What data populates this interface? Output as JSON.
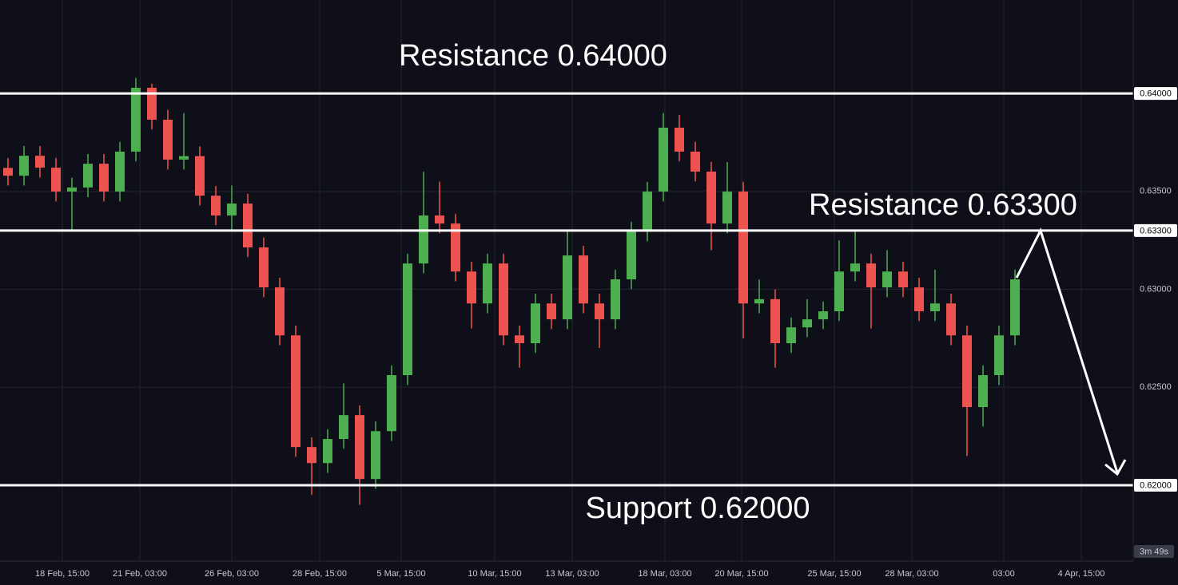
{
  "chart_data": {
    "type": "candlestick",
    "colors": {
      "up": "#4caf50",
      "down": "#ef5350"
    },
    "open": [
      0.6362,
      0.6358,
      0.63682,
      0.63621,
      0.63499,
      0.6352,
      0.63641,
      0.63499,
      0.63703,
      0.64029,
      0.63866,
      0.63662,
      0.6368,
      0.63478,
      0.63377,
      0.63438,
      0.63214,
      0.6301,
      0.62765,
      0.62195,
      0.62113,
      0.62236,
      0.62358,
      0.62032,
      0.62276,
      0.62562,
      0.63132,
      0.63377,
      0.63336,
      0.63091,
      0.62928,
      0.63132,
      0.62765,
      0.62725,
      0.62928,
      0.62847,
      0.63173,
      0.62928,
      0.62847,
      0.63051,
      0.63295,
      0.63499,
      0.63825,
      0.63703,
      0.63601,
      0.63336,
      0.63499,
      0.62928,
      0.6295,
      0.62725,
      0.62806,
      0.62847,
      0.62888,
      0.63091,
      0.63132,
      0.6301,
      0.63091,
      0.6301,
      0.62888,
      0.62928,
      0.62765,
      0.62399,
      0.62562,
      0.62765
    ],
    "high": [
      0.6367,
      0.63732,
      0.63732,
      0.63671,
      0.6357,
      0.63691,
      0.63691,
      0.63753,
      0.64079,
      0.6405,
      0.63916,
      0.639,
      0.6373,
      0.63528,
      0.6353,
      0.63488,
      0.63264,
      0.6306,
      0.62815,
      0.62245,
      0.62286,
      0.6252,
      0.62408,
      0.62326,
      0.62612,
      0.63182,
      0.636,
      0.6355,
      0.63386,
      0.63141,
      0.63182,
      0.63182,
      0.62815,
      0.62978,
      0.62978,
      0.633,
      0.63223,
      0.62978,
      0.63101,
      0.63345,
      0.63549,
      0.639,
      0.6389,
      0.63753,
      0.63651,
      0.6365,
      0.63549,
      0.6305,
      0.63,
      0.62856,
      0.6295,
      0.62938,
      0.6325,
      0.633,
      0.63182,
      0.632,
      0.63141,
      0.6306,
      0.631,
      0.62978,
      0.62815,
      0.62612,
      0.62815,
      0.63101
    ],
    "low": [
      0.6353,
      0.6353,
      0.63571,
      0.63449,
      0.633,
      0.6347,
      0.63449,
      0.63449,
      0.63653,
      0.63816,
      0.63612,
      0.63612,
      0.63428,
      0.63327,
      0.633,
      0.63164,
      0.6296,
      0.62715,
      0.62145,
      0.6195,
      0.62063,
      0.62186,
      0.619,
      0.61982,
      0.62226,
      0.62512,
      0.63082,
      0.63286,
      0.63041,
      0.628,
      0.62878,
      0.62715,
      0.626,
      0.62675,
      0.62797,
      0.62797,
      0.62878,
      0.627,
      0.62797,
      0.63001,
      0.63245,
      0.63449,
      0.63653,
      0.63551,
      0.632,
      0.63286,
      0.6275,
      0.62878,
      0.626,
      0.62675,
      0.62756,
      0.62797,
      0.62838,
      0.63041,
      0.628,
      0.6296,
      0.6296,
      0.62838,
      0.62838,
      0.62715,
      0.6215,
      0.623,
      0.62512,
      0.62715
    ],
    "close": [
      0.6358,
      0.63682,
      0.63621,
      0.63499,
      0.6352,
      0.63641,
      0.63499,
      0.63703,
      0.64029,
      0.63866,
      0.63662,
      0.6368,
      0.63478,
      0.63377,
      0.63438,
      0.63214,
      0.6301,
      0.62765,
      0.62195,
      0.62113,
      0.62236,
      0.62358,
      0.62032,
      0.62276,
      0.62562,
      0.63132,
      0.63377,
      0.63336,
      0.63091,
      0.62928,
      0.63132,
      0.62765,
      0.62725,
      0.62928,
      0.62847,
      0.63173,
      0.62928,
      0.62847,
      0.63051,
      0.63295,
      0.63499,
      0.63825,
      0.63703,
      0.63601,
      0.63336,
      0.63499,
      0.62928,
      0.6295,
      0.62725,
      0.62806,
      0.62847,
      0.62888,
      0.63091,
      0.63132,
      0.6301,
      0.63091,
      0.6301,
      0.62888,
      0.62928,
      0.62765,
      0.62399,
      0.62562,
      0.62765,
      0.63051
    ],
    "xlim": [
      -0.5,
      70.4
    ],
    "ylim": [
      0.61613,
      0.64477
    ],
    "xticks": [
      {
        "value": 3.4,
        "label": "18 Feb, 15:00"
      },
      {
        "value": 8.25,
        "label": "21 Feb, 03:00"
      },
      {
        "value": 14,
        "label": "26 Feb, 03:00"
      },
      {
        "value": 19.5,
        "label": "28 Feb, 15:00"
      },
      {
        "value": 24.6,
        "label": "5 Mar, 15:00"
      },
      {
        "value": 30.45,
        "label": "10 Mar, 15:00"
      },
      {
        "value": 35.3,
        "label": "13 Mar, 03:00"
      },
      {
        "value": 41.1,
        "label": "18 Mar, 03:00"
      },
      {
        "value": 45.9,
        "label": "20 Mar, 15:00"
      },
      {
        "value": 51.7,
        "label": "25 Mar, 15:00"
      },
      {
        "value": 56.55,
        "label": "28 Mar, 03:00"
      },
      {
        "value": 62.3,
        "label": "03:00"
      },
      {
        "value": 67.15,
        "label": "4 Apr, 15:00"
      }
    ],
    "yticks": [
      {
        "value": 0.635,
        "label": "0.63500"
      },
      {
        "value": 0.63,
        "label": "0.63000"
      },
      {
        "value": 0.625,
        "label": "0.62500"
      }
    ],
    "grid": true,
    "levels": [
      {
        "value": 0.64,
        "label": "0.64000",
        "text": "Resistance 0.64000"
      },
      {
        "value": 0.633,
        "label": "0.63300",
        "text": "Resistance 0.63300"
      },
      {
        "value": 0.62,
        "label": "0.62000",
        "text": "Support 0.62000"
      }
    ],
    "countdown": "3m 49s"
  }
}
